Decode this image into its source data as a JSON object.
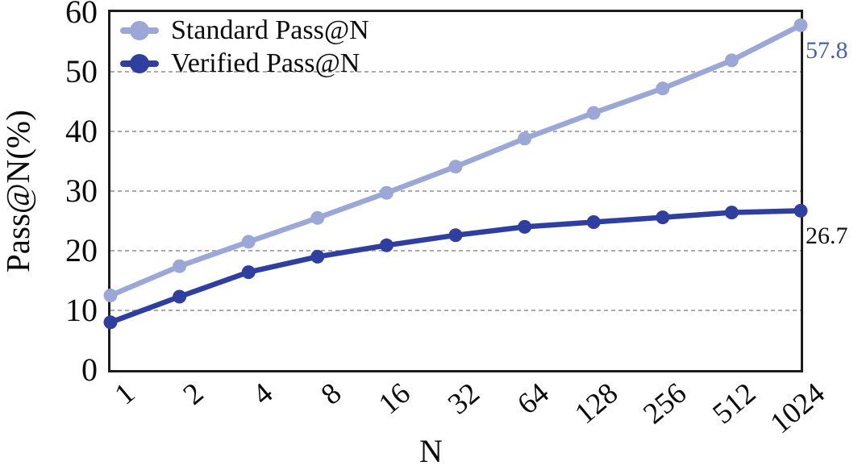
{
  "chart_data": {
    "type": "line",
    "title": "",
    "xlabel": "N",
    "ylabel": "Pass@N(%)",
    "x_tick_labels": [
      "1",
      "2",
      "4",
      "8",
      "16",
      "32",
      "64",
      "128",
      "256",
      "512",
      "1024"
    ],
    "y_ticks": [
      0,
      10,
      20,
      30,
      40,
      50,
      60
    ],
    "ylim": [
      0,
      60
    ],
    "grid": "horizontal-dashed",
    "grid_color": "#ababab",
    "legend_position": "top-left-inside",
    "series": [
      {
        "name": "Standard Pass@N",
        "color": "#9aa7d7",
        "values": [
          12.5,
          17.4,
          21.5,
          25.5,
          29.7,
          34.1,
          38.8,
          43.1,
          47.2,
          51.9,
          57.8
        ],
        "end_label": "57.8",
        "end_label_color": "#4a5fae"
      },
      {
        "name": "Verified Pass@N",
        "color": "#2f3f9f",
        "values": [
          8.0,
          12.3,
          16.4,
          19.0,
          20.9,
          22.6,
          24.0,
          24.8,
          25.6,
          26.4,
          26.7
        ],
        "end_label": "26.7",
        "end_label_color": "#111111"
      }
    ]
  }
}
